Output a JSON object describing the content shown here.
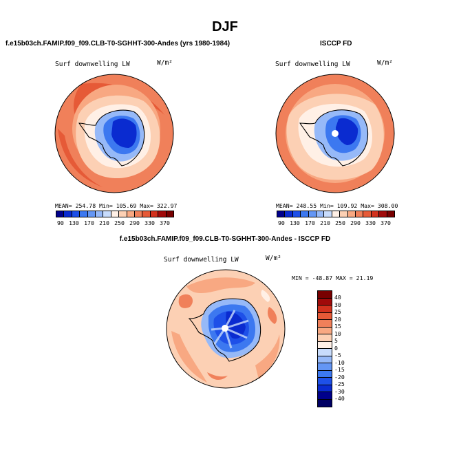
{
  "title": "DJF",
  "panels": [
    {
      "id": "model",
      "title": "f.e15b03ch.FAMIP.f09_f09.CLB-T0-SGHHT-300-Andes (yrs 1980-1984)",
      "variable": "Surf downwelling LW",
      "units": "W/m²",
      "stats": "MEAN= 254.78   Min= 105.69   Max= 322.97"
    },
    {
      "id": "obs",
      "title": "ISCCP FD",
      "variable": "Surf downwelling LW",
      "units": "W/m²",
      "stats": "MEAN= 248.55   Min= 109.92   Max= 308.00"
    },
    {
      "id": "diff",
      "title": "f.e15b03ch.FAMIP.f09_f09.CLB-T0-SGHHT-300-Andes - ISCCP FD",
      "variable": "Surf downwelling LW",
      "units": "W/m²",
      "stats": "MIN = -48.87 MAX =  21.19"
    }
  ],
  "colorbar_main": {
    "labels": [
      "90",
      "130",
      "170",
      "210",
      "250",
      "290",
      "330",
      "370"
    ],
    "colors": [
      "#00008b",
      "#0a2bd0",
      "#1e50e8",
      "#3c78f0",
      "#6496f4",
      "#96b9f8",
      "#c8dcfc",
      "#fff0e6",
      "#fcd0b4",
      "#f8a882",
      "#f0805a",
      "#e65a37",
      "#d2321e",
      "#a00a0a",
      "#780000"
    ]
  },
  "colorbar_diff": {
    "labels": [
      "40",
      "30",
      "25",
      "20",
      "15",
      "10",
      "5",
      "0",
      "-5",
      "-10",
      "-15",
      "-20",
      "-25",
      "-30",
      "-40"
    ],
    "colors": [
      "#780000",
      "#a00a0a",
      "#d2321e",
      "#e65a37",
      "#f0805a",
      "#f8a882",
      "#fcd0b4",
      "#fff0e6",
      "#c8dcfc",
      "#96b9f8",
      "#6496f4",
      "#3c78f0",
      "#1e50e8",
      "#0a2bd0",
      "#00008b",
      "#000064"
    ]
  }
}
